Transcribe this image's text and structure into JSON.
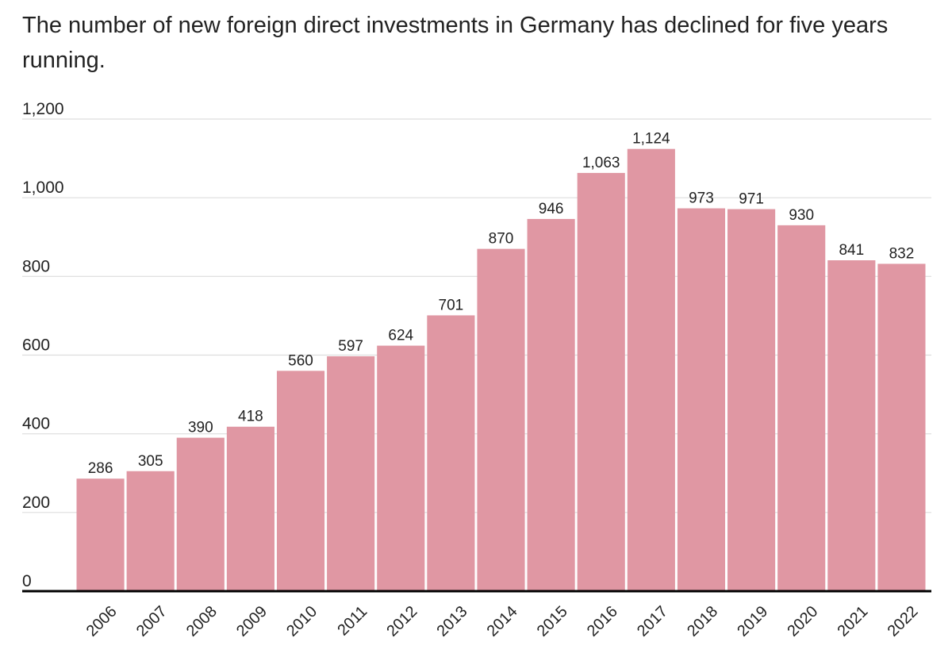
{
  "chart_data": {
    "type": "bar",
    "title": "The number of new foreign direct investments in Germany has declined for five years running.",
    "xlabel": "",
    "ylabel": "",
    "categories": [
      "2006",
      "2007",
      "2008",
      "2009",
      "2010",
      "2011",
      "2012",
      "2013",
      "2014",
      "2015",
      "2016",
      "2017",
      "2018",
      "2019",
      "2020",
      "2021",
      "2022"
    ],
    "values": [
      286,
      305,
      390,
      418,
      560,
      597,
      624,
      701,
      870,
      946,
      1063,
      1124,
      973,
      971,
      930,
      841,
      832
    ],
    "value_labels": [
      "286",
      "305",
      "390",
      "418",
      "560",
      "597",
      "624",
      "701",
      "870",
      "946",
      "1,063",
      "1,124",
      "973",
      "971",
      "930",
      "841",
      "832"
    ],
    "ylim": [
      0,
      1200
    ],
    "yticks": [
      0,
      200,
      400,
      600,
      800,
      1000,
      1200
    ],
    "ytick_labels": [
      "0",
      "200",
      "400",
      "600",
      "800",
      "1,000",
      "1,200"
    ],
    "grid": true,
    "bar_color": "#e097a3",
    "grid_color": "#dddddd",
    "axis_color": "#000000"
  }
}
